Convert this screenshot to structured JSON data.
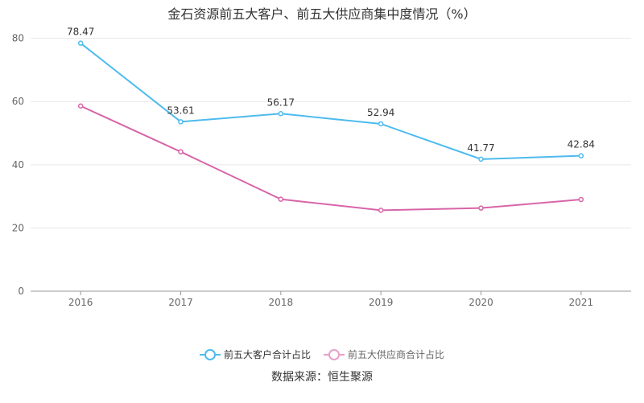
{
  "chart_data": {
    "type": "line",
    "title": "金石资源前五大客户、前五大供应商集中度情况（%）",
    "categories": [
      "2016",
      "2017",
      "2018",
      "2019",
      "2020",
      "2021"
    ],
    "yticks": [
      "0",
      "20",
      "40",
      "60",
      "80"
    ],
    "ylim": [
      0,
      85
    ],
    "xlabel": "",
    "ylabel": "",
    "series": [
      {
        "name": "前五大客户合计占比",
        "color": "#4dbbee",
        "values": [
          78.47,
          53.61,
          56.17,
          52.94,
          41.77,
          42.84
        ],
        "labels": [
          "78.47",
          "53.61",
          "56.17",
          "52.94",
          "41.77",
          "42.84"
        ],
        "show_labels": true
      },
      {
        "name": "前五大供应商合计占比",
        "color": "#d865a8",
        "values": [
          58.6,
          44.1,
          29.1,
          25.6,
          26.3,
          29.0
        ],
        "show_labels": false
      }
    ],
    "legend": {
      "items": [
        {
          "label": "前五大客户合计占比",
          "color": "#4dbbee"
        },
        {
          "label": "前五大供应商合计占比",
          "color": "#e8a0c8"
        }
      ]
    },
    "source": "数据来源：恒生聚源"
  }
}
